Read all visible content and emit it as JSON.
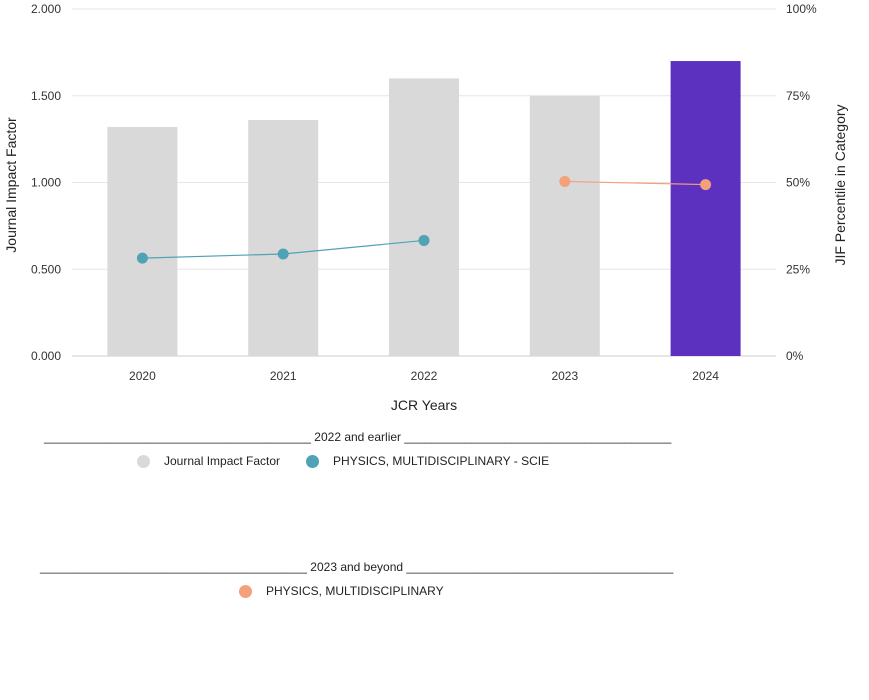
{
  "chart_data": {
    "type": "bar",
    "xlabel": "JCR Years",
    "ylabel": "Journal Impact Factor",
    "y2label": "JIF Percentile in Category",
    "categories": [
      "2020",
      "2021",
      "2022",
      "2023",
      "2024"
    ],
    "ylim": [
      0,
      2.0
    ],
    "y2lim": [
      0,
      100
    ],
    "yticks": [
      "0.000",
      "0.500",
      "1.000",
      "1.500",
      "2.000"
    ],
    "y2ticks": [
      "0%",
      "25%",
      "50%",
      "75%",
      "100%"
    ],
    "grid": true,
    "series": [
      {
        "name": "Journal Impact Factor",
        "kind": "bar",
        "axis": "left",
        "values": [
          1.32,
          1.36,
          1.6,
          1.5,
          1.7
        ],
        "colors": [
          "#d9d9d9",
          "#d9d9d9",
          "#d9d9d9",
          "#d9d9d9",
          "#5c31c0"
        ]
      },
      {
        "name": "PHYSICS, MULTIDISCIPLINARY - SCIE",
        "kind": "line",
        "axis": "right",
        "color": "#4fa3b4",
        "x": [
          "2020",
          "2021",
          "2022"
        ],
        "values": [
          28.2,
          29.4,
          33.3
        ]
      },
      {
        "name": "PHYSICS, MULTIDISCIPLINARY",
        "kind": "line",
        "axis": "right",
        "color": "#f4a07a",
        "x": [
          "2023",
          "2024"
        ],
        "values": [
          50.3,
          49.4
        ]
      }
    ]
  },
  "legend": {
    "group1": {
      "title": "2022 and earlier",
      "items": [
        {
          "label": "Journal Impact Factor",
          "color": "#d9d9d9"
        },
        {
          "label": "PHYSICS, MULTIDISCIPLINARY - SCIE",
          "color": "#4fa3b4"
        }
      ]
    },
    "group2": {
      "title": "2023 and beyond",
      "items": [
        {
          "label": "PHYSICS, MULTIDISCIPLINARY",
          "color": "#f4a07a"
        }
      ]
    }
  }
}
